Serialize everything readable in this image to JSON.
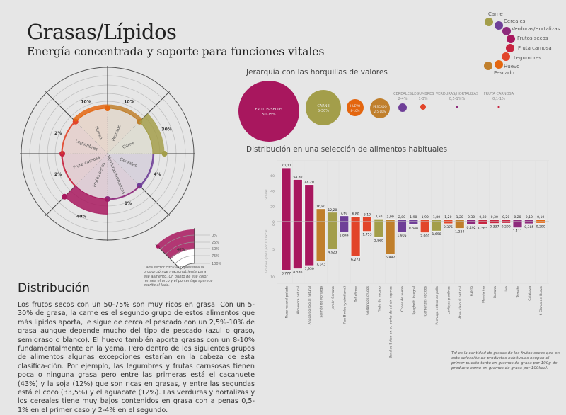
{
  "header": {
    "title": "Grasas/Lípidos",
    "subtitle": "Energía concentrada y soporte para funciones vitales"
  },
  "colors": {
    "carne": "#a39e4a",
    "cereales": "#6f3f98",
    "verduras": "#8e2a7c",
    "frutos_secos": "#a8175e",
    "fruta_carnosa": "#c7243f",
    "legumbres": "#e2452a",
    "huevo": "#e4660f",
    "pescado": "#c07f2c"
  },
  "legend": [
    {
      "label": "Carne",
      "key": "carne"
    },
    {
      "label": "Cereales",
      "key": "cereales"
    },
    {
      "label": "Verduras/Hortalizas",
      "key": "verduras"
    },
    {
      "label": "Frutos secos",
      "key": "frutos_secos"
    },
    {
      "label": "Fruta carnosa",
      "key": "fruta_carnosa"
    },
    {
      "label": "Legumbres",
      "key": "legumbres"
    },
    {
      "label": "Huevo",
      "key": "huevo"
    },
    {
      "label": "Pescado",
      "key": "pescado"
    }
  ],
  "polar": {
    "sectors": [
      {
        "label": "Pescado",
        "value": 10,
        "value_label": "10%",
        "key": "pescado"
      },
      {
        "label": "Carne",
        "value": 30,
        "value_label": "30%",
        "key": "carne"
      },
      {
        "label": "Cereales",
        "value": 4,
        "value_label": "4%",
        "key": "cereales"
      },
      {
        "label": "Verduras/Hortalizas",
        "value": 1,
        "value_label": "1%",
        "key": "verduras"
      },
      {
        "label": "Frutos secos",
        "value": 40,
        "value_label": "40%",
        "key": "frutos_secos"
      },
      {
        "label": "Fruta carnosa",
        "value": 2,
        "value_label": "2%",
        "key": "fruta_carnosa"
      },
      {
        "label": "Legumbres",
        "value": 2,
        "value_label": "2%",
        "key": "legumbres"
      },
      {
        "label": "Huevo",
        "value": 10,
        "value_label": "10%",
        "key": "huevo"
      }
    ],
    "key_legend": {
      "ticks": [
        "0%",
        "25%",
        "50%",
        "75%",
        "100%"
      ],
      "example_label": "40%",
      "caption": "Cada sector circular representa la proporción de macronutriente para ese alimento. Un punto de ese color remata el arco y el porcentaje aparece escrito al lado."
    }
  },
  "bubbles": {
    "title": "Jerarquía con las horquillas de valores",
    "items": [
      {
        "label": "FRUTOS SECOS",
        "range": "50-75%",
        "key": "frutos_secos"
      },
      {
        "label": "CARNE",
        "range": "5-30%",
        "key": "carne"
      },
      {
        "label": "HUEVO",
        "range": "8-10%",
        "key": "huevo"
      },
      {
        "label": "PESCADO",
        "range": "2,5-10%",
        "key": "pescado"
      },
      {
        "label": "CEREALES",
        "range": "2-4%",
        "key": "cereales"
      },
      {
        "label": "LEGUMBRES",
        "range": "1-3%",
        "key": "legumbres"
      },
      {
        "label": "VERDURAS/HORTALIZAS",
        "range": "0,5-1%%",
        "key": "verduras"
      },
      {
        "label": "FRUTA CARNOSA",
        "range": "0,1-1%",
        "key": "fruta_carnosa"
      }
    ]
  },
  "chart_data": {
    "type": "bar",
    "title": "Distribución en una selección de alimentos habituales",
    "ylabel_top": "Grasas",
    "ylabel_bottom": "Gramos grasa por 100 kcal",
    "yticks_top": [
      "0",
      "20",
      "40",
      "60"
    ],
    "yticks_bottom": [
      "0",
      "5",
      "10"
    ],
    "ylim_top": [
      0,
      70
    ],
    "ylim_bottom": [
      0,
      10
    ],
    "categories": [
      "Nuez natural pelada",
      "Almendra natural",
      "Anacardo rojo al natural",
      "Salmón de Noruega",
      "Jamón Serrano",
      "Pan Bimbo (y similares)",
      "Tofu firme",
      "Garbanzos crudos",
      "Filete de vacuno",
      "Bacalao Bateo en su punto de sal sin espinas",
      "Copos de avena",
      "Spaghetti integral",
      "Garbanzos cocidos",
      "Pechuga entera de pollo",
      "Lentejas pardinas",
      "Atún claro al natural",
      "Puerro",
      "Mandarina",
      "Banana",
      "Uva",
      "Tomate",
      "Calabaza",
      "6 Claras de Huevo"
    ],
    "groups": [
      "frutos_secos",
      "frutos_secos",
      "frutos_secos",
      "pescado",
      "carne",
      "cereales",
      "legumbres",
      "legumbres",
      "carne",
      "pescado",
      "cereales",
      "cereales",
      "legumbres",
      "carne",
      "legumbres",
      "pescado",
      "verduras",
      "fruta_carnosa",
      "fruta_carnosa",
      "fruta_carnosa",
      "verduras",
      "verduras",
      "huevo"
    ],
    "series": [
      {
        "name": "Grasas",
        "values": [
          70.0,
          54.8,
          48.2,
          16.8,
          12.2,
          7.6,
          6.8,
          6.1,
          3.5,
          3.0,
          2.8,
          1.9,
          1.9,
          1.8,
          1.2,
          1.2,
          0.3,
          0.3,
          0.3,
          0.2,
          0.2,
          0.1,
          0.1
        ],
        "labels": [
          "70,00",
          "54,80",
          "48,20",
          "16,80",
          "12,20",
          "7,60",
          "6,80",
          "6,10",
          "3,50",
          "3,00",
          "2,80",
          "1,90",
          "1,90",
          "1,80",
          "1,20",
          "1,20",
          "0,30",
          "0,30",
          "0,30",
          "0,20",
          "0,20",
          "0,10",
          "0,10"
        ]
      },
      {
        "name": "Gramos grasa por 100 kcal",
        "values": [
          8.777,
          8.536,
          7.95,
          7.143,
          4.923,
          1.844,
          6.273,
          1.753,
          2.869,
          5.882,
          1.905,
          0.548,
          2.0,
          1.698,
          0.375,
          1.224,
          0.492,
          0.565,
          0.337,
          0.29,
          1.111,
          0.385,
          0.29
        ],
        "labels": [
          "8,777",
          "8,536",
          "7,950",
          "7,143",
          "4,923",
          "1,844",
          "6,273",
          "1,753",
          "2,869",
          "5,882",
          "1,905",
          "0,548",
          "2,000",
          "1,698",
          "0,375",
          "1,224",
          "0,492",
          "0,565",
          "0,337",
          "0,290",
          "1,111",
          "0,385",
          "0,290"
        ]
      }
    ]
  },
  "distribution": {
    "heading": "Distribución",
    "text": "Los frutos secos con un 50-75% son muy ricos en grasa. Con un 5-30% de grasa, la carne es el segundo grupo de estos alimentos que más lípidos aporta, le sigue de cerca el pescado con un 2,5%-10% de grasa aunque depende mucho del tipo de pescado (azul o graso, semigraso o blanco). El huevo también aporta grasas con un 8-10% fundamentalmente en la yema. Pero dentro de los siguientes grupos de alimentos algunas excepciones estarían en la cabeza de esta clasifica-ción. Por ejemplo, las legumbres y frutas carnsosas tienen poca o ninguna grasa pero entre las primeras está el cacahuete (43%) y la soja (12%) que son ricas en grasas, y entre las segundas está el coco (33,5%) y el aguacate (12%). Las verduras y hortalizas y los cereales tiene muy bajos contenidos en grasa con a penas 0,5-1% en el primer caso y 2-4% en el segundo."
  },
  "footnote": "Tal es la cantidad de grasas de los frutos secos que en esta selección de productos habituales ocupan el primer puesto tanto en gramos de grasa por 100g de producto como en gramos de grasa por 100kcal."
}
